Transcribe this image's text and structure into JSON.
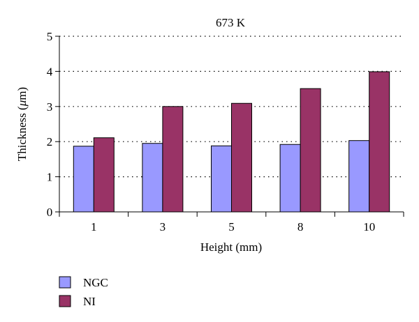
{
  "chart_data": {
    "type": "bar",
    "title": "673 K",
    "xlabel": "Height (mm)",
    "ylabel_prefix": "Thickness (",
    "ylabel_unit_symbol": "μ",
    "ylabel_suffix": "m)",
    "categories": [
      "1",
      "3",
      "5",
      "8",
      "10"
    ],
    "series": [
      {
        "name": "NGC",
        "values": [
          1.87,
          1.95,
          1.88,
          1.92,
          2.03
        ],
        "color": "#9999ff"
      },
      {
        "name": "NI",
        "values": [
          2.11,
          3.0,
          3.09,
          3.51,
          3.99
        ],
        "color": "#993366"
      }
    ],
    "ylim": [
      0,
      5
    ],
    "yticks": [
      "0",
      "1",
      "2",
      "3",
      "4",
      "5"
    ],
    "grid": "horizontal dotted",
    "legend": "bottom-left"
  }
}
